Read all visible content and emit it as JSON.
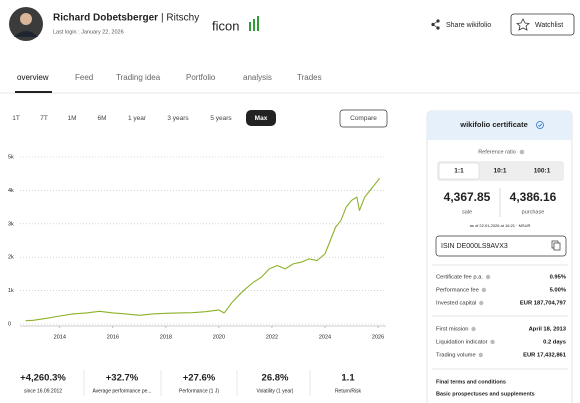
{
  "header": {
    "name": "Richard Dobetsberger",
    "nickname": "| Ritschy",
    "last_login": "Last login : January 22, 2026",
    "logo": "ficon",
    "share": "Share wikifolio",
    "watchlist": "Watchlist"
  },
  "tabs": [
    "overview",
    "Feed",
    "Trading idea",
    "Portfolio",
    "analysis",
    "Trades"
  ],
  "ranges": [
    "1T",
    "7T",
    "1M",
    "6M",
    "1 year",
    "3 years",
    "5 years",
    "Max"
  ],
  "compare": "Compare",
  "chart": {
    "type": "line",
    "color": "#8bb22a",
    "grid": true,
    "x": [
      2012.71,
      2013.0,
      2013.5,
      2014.0,
      2014.5,
      2015.0,
      2015.5,
      2016.0,
      2016.5,
      2017.0,
      2017.5,
      2018.0,
      2018.5,
      2019.0,
      2019.5,
      2020.0,
      2020.2,
      2020.5,
      2020.8,
      2021.0,
      2021.3,
      2021.6,
      2021.9,
      2022.2,
      2022.5,
      2022.8,
      2023.1,
      2023.4,
      2023.7,
      2024.0,
      2024.2,
      2024.4,
      2024.6,
      2024.8,
      2025.0,
      2025.2,
      2025.3,
      2025.5,
      2025.7,
      2025.9,
      2026.06
    ],
    "values": [
      100,
      110,
      170,
      240,
      300,
      330,
      380,
      330,
      300,
      260,
      300,
      320,
      330,
      340,
      370,
      420,
      330,
      650,
      900,
      1050,
      1250,
      1400,
      1650,
      1750,
      1650,
      1800,
      1850,
      1950,
      1900,
      2100,
      2500,
      2900,
      3100,
      3500,
      3700,
      3800,
      3400,
      3800,
      4000,
      4200,
      4368
    ],
    "xlim": [
      2012.5,
      2026.3
    ],
    "ylim": [
      0,
      5000
    ],
    "xticks": [
      2014,
      2016,
      2018,
      2020,
      2022,
      2024,
      2026
    ],
    "yticks": [
      0,
      {
        "value": 1000,
        "label": "1k"
      },
      {
        "value": 2000,
        "label": "2k"
      },
      {
        "value": 3000,
        "label": "3k"
      },
      {
        "value": 4000,
        "label": "4k"
      },
      {
        "value": 5000,
        "label": "5k"
      }
    ]
  },
  "stats": [
    {
      "value": "+4,260.3%",
      "label": "since 16.09.2012"
    },
    {
      "value": "+32.7%",
      "label": "Average performance pe..."
    },
    {
      "value": "+27.6%",
      "label": "Performance (1 J)"
    },
    {
      "value": "26.8%",
      "label": "Volatility (1 year)"
    },
    {
      "value": "1.1",
      "label": "Return/Risk"
    }
  ],
  "certificate": {
    "title": "wikifolio certificate",
    "reference_ratio": "Reference ratio",
    "ratios": [
      "1:1",
      "10:1",
      "100:1"
    ],
    "sale": "4,367.85",
    "sale_label": "sale",
    "purchase": "4,386.16",
    "purchase_label": "purchase",
    "as_of": "as of 22.01.2026 at 16:21 · MSUR",
    "isin": "ISIN DE000LS9AVX3",
    "rows": [
      [
        "Certificate fee p.a.",
        "0.95%"
      ],
      [
        "Performance fee",
        "5.00%"
      ],
      [
        "Invested capital",
        "EUR 187,704,797"
      ],
      [
        "First mission",
        "April 18, 2013"
      ],
      [
        "Liquidation indicator",
        "0.2 days"
      ],
      [
        "Trading volume",
        "EUR 17,432,861"
      ]
    ],
    "links": [
      "Final terms and conditions",
      "Basic prospectuses and supplements"
    ]
  }
}
